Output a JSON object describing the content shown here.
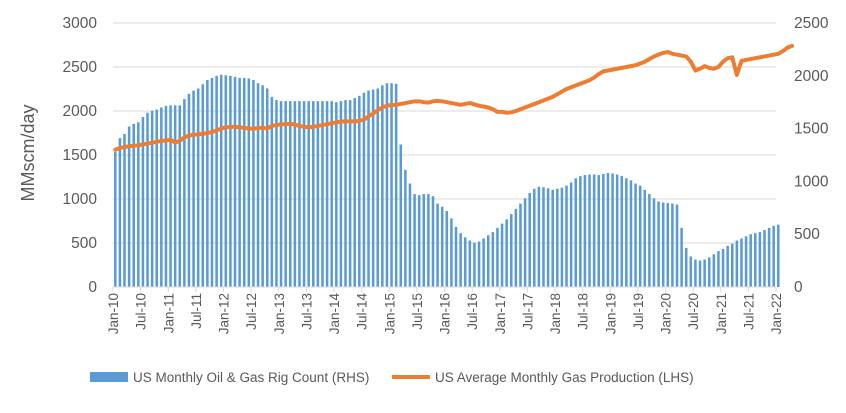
{
  "chart_data": {
    "type": "bar+line",
    "title": "",
    "xlabel": "",
    "ylabel_left": "MMscm/day",
    "ylabel_right": "",
    "ylim_left": [
      0,
      3000
    ],
    "ylim_right": [
      0,
      2500
    ],
    "yticks_left": [
      "0",
      "500",
      "1000",
      "1500",
      "2000",
      "2500",
      "3000"
    ],
    "yticks_right": [
      "0",
      "500",
      "1000",
      "1500",
      "2000",
      "2500"
    ],
    "xticks": [
      "Jan-10",
      "Jul-10",
      "Jan-11",
      "Jul-11",
      "Jan-12",
      "Jul-12",
      "Jan-13",
      "Jul-13",
      "Jan-14",
      "Jul-14",
      "Jan-15",
      "Jul-15",
      "Jan-16",
      "Jul-16",
      "Jan-17",
      "Jul-17",
      "Jan-18",
      "Jul-18",
      "Jan-19",
      "Jul-19",
      "Jan-20",
      "Jul-20",
      "Jan-21",
      "Jul-21",
      "Jan-22"
    ],
    "start_month": "Jan-10",
    "grid": "horizontal",
    "legend_position": "bottom",
    "series": [
      {
        "name": "US Monthly Oil & Gas Rig Count (RHS)",
        "kind": "bar",
        "axis": "right",
        "color": "#5b9bd5",
        "values": [
          1280,
          1410,
          1450,
          1520,
          1545,
          1560,
          1610,
          1650,
          1670,
          1680,
          1700,
          1715,
          1720,
          1720,
          1720,
          1780,
          1830,
          1860,
          1880,
          1920,
          1960,
          1980,
          2000,
          2010,
          2005,
          2000,
          1990,
          1980,
          1980,
          1975,
          1960,
          1930,
          1910,
          1880,
          1800,
          1770,
          1760,
          1760,
          1760,
          1760,
          1760,
          1760,
          1760,
          1760,
          1760,
          1760,
          1760,
          1760,
          1750,
          1760,
          1770,
          1770,
          1790,
          1810,
          1840,
          1860,
          1870,
          1880,
          1910,
          1930,
          1930,
          1925,
          1350,
          1110,
          980,
          880,
          870,
          880,
          880,
          860,
          790,
          760,
          720,
          650,
          570,
          510,
          470,
          440,
          420,
          430,
          460,
          490,
          520,
          560,
          600,
          640,
          690,
          740,
          790,
          840,
          890,
          930,
          950,
          945,
          935,
          920,
          930,
          940,
          960,
          990,
          1030,
          1050,
          1060,
          1065,
          1065,
          1060,
          1070,
          1080,
          1075,
          1065,
          1050,
          1030,
          1010,
          980,
          960,
          920,
          880,
          840,
          810,
          800,
          795,
          790,
          780,
          560,
          370,
          290,
          260,
          250,
          260,
          280,
          310,
          340,
          360,
          390,
          410,
          440,
          460,
          480,
          500,
          510,
          520,
          540,
          560,
          580,
          590
        ],
        "_note_removed": ""
      },
      {
        "name": "US Average Monthly Gas Production (LHS)",
        "kind": "line",
        "axis": "left",
        "color": "#ed7d31",
        "values": [
          1560,
          1580,
          1590,
          1600,
          1605,
          1610,
          1620,
          1630,
          1640,
          1650,
          1660,
          1665,
          1675,
          1640,
          1660,
          1700,
          1720,
          1730,
          1735,
          1740,
          1750,
          1760,
          1780,
          1800,
          1815,
          1820,
          1820,
          1815,
          1810,
          1800,
          1800,
          1805,
          1810,
          1800,
          1830,
          1840,
          1850,
          1850,
          1855,
          1845,
          1830,
          1820,
          1815,
          1820,
          1830,
          1840,
          1850,
          1860,
          1870,
          1880,
          1880,
          1885,
          1880,
          1890,
          1900,
          1940,
          1970,
          2010,
          2040,
          2060,
          2070,
          2070,
          2080,
          2090,
          2100,
          2110,
          2110,
          2100,
          2095,
          2110,
          2115,
          2110,
          2100,
          2090,
          2080,
          2070,
          2080,
          2090,
          2075,
          2060,
          2050,
          2040,
          2020,
          1990,
          1990,
          1980,
          1985,
          2000,
          2020,
          2040,
          2060,
          2080,
          2100,
          2120,
          2140,
          2160,
          2190,
          2220,
          2250,
          2270,
          2290,
          2310,
          2330,
          2350,
          2380,
          2420,
          2450,
          2460,
          2470,
          2480,
          2490,
          2500,
          2510,
          2520,
          2540,
          2560,
          2590,
          2620,
          2640,
          2660,
          2670,
          2650,
          2640,
          2630,
          2620,
          2560,
          2460,
          2480,
          2510,
          2490,
          2480,
          2500,
          2560,
          2600,
          2610,
          2410,
          2570,
          2580,
          2590,
          2600,
          2610,
          2620,
          2630,
          2640,
          2650,
          2680,
          2720,
          2740
        ]
      }
    ]
  }
}
